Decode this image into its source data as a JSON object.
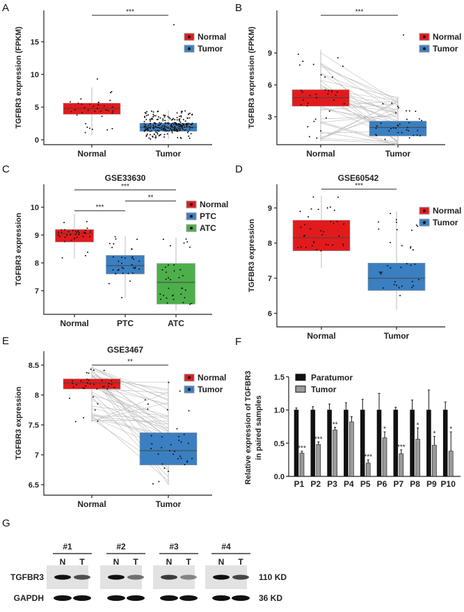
{
  "colors": {
    "normal": "#e31a1c",
    "tumor": "#3a7fc1",
    "atc": "#4daf4a",
    "paratumor": "#111111",
    "tumor_bar": "#9a9a9a"
  },
  "chart_data": [
    {
      "panel": "A",
      "type": "box",
      "title": "",
      "ylabel": "TGFBR3 expression (FPKM)",
      "yticks": [
        0,
        5,
        10,
        15
      ],
      "categories": [
        "Normal",
        "Tumor"
      ],
      "legend": [
        "Normal",
        "Tumor"
      ],
      "boxes": [
        {
          "q1": 3.9,
          "median": 4.8,
          "q3": 5.6,
          "lo": 0.7,
          "hi": 8.0,
          "max": 9.3
        },
        {
          "q1": 1.3,
          "median": 1.9,
          "q3": 2.55,
          "lo": 0.1,
          "hi": 4.5,
          "max": 17.6
        }
      ],
      "comparisons": [
        {
          "groups": [
            0,
            1
          ],
          "label": "***"
        }
      ]
    },
    {
      "panel": "B",
      "type": "box",
      "paired": true,
      "title": "",
      "ylabel": "TGFBR3 expression (FPKM)",
      "yticks": [
        3,
        6,
        9
      ],
      "categories": [
        "Normal",
        "Tumor"
      ],
      "legend": [
        "Normal",
        "Tumor"
      ],
      "boxes": [
        {
          "q1": 4.0,
          "median": 4.8,
          "q3": 5.55,
          "lo": 0.7,
          "hi": 9.3
        },
        {
          "q1": 1.2,
          "median": 2.0,
          "q3": 2.6,
          "lo": 0.3,
          "hi": 4.9,
          "max": 10.7
        }
      ],
      "comparisons": [
        {
          "groups": [
            0,
            1
          ],
          "label": "***"
        }
      ]
    },
    {
      "panel": "C",
      "type": "box",
      "title": "GSE33630",
      "ylabel": "TGFBR3 expression",
      "yticks": [
        7,
        8,
        9,
        10
      ],
      "categories": [
        "Normal",
        "PTC",
        "ATC"
      ],
      "legend": [
        "Normal",
        "PTC",
        "ATC"
      ],
      "boxes": [
        {
          "q1": 8.75,
          "median": 9.05,
          "q3": 9.2,
          "lo": 8.15,
          "hi": 9.75
        },
        {
          "q1": 7.6,
          "median": 7.9,
          "q3": 8.27,
          "lo": 6.75,
          "hi": 8.95
        },
        {
          "q1": 6.52,
          "median": 7.3,
          "q3": 7.98,
          "lo": 6.3,
          "hi": 8.9
        }
      ],
      "comparisons": [
        {
          "groups": [
            0,
            2
          ],
          "label": "***"
        },
        {
          "groups": [
            1,
            2
          ],
          "label": "**"
        },
        {
          "groups": [
            0,
            1
          ],
          "label": "***"
        }
      ]
    },
    {
      "panel": "D",
      "type": "box",
      "title": "GSE60542",
      "ylabel": "TGFBR3 expression",
      "yticks": [
        6,
        7,
        8,
        9
      ],
      "categories": [
        "Normal",
        "Tumor"
      ],
      "legend": [
        "Normal",
        "Tumor"
      ],
      "boxes": [
        {
          "q1": 7.78,
          "median": 8.15,
          "q3": 8.65,
          "lo": 7.3,
          "hi": 9.35
        },
        {
          "q1": 6.65,
          "median": 7.0,
          "q3": 7.43,
          "lo": 6.1,
          "hi": 8.9
        }
      ],
      "comparisons": [
        {
          "groups": [
            0,
            1
          ],
          "label": "***"
        }
      ]
    },
    {
      "panel": "E",
      "type": "box",
      "paired": true,
      "title": "GSE3467",
      "ylabel": "TGFBR3 expression",
      "yticks": [
        6.5,
        7.0,
        7.5,
        8.0,
        8.5
      ],
      "categories": [
        "Normal",
        "Tumor"
      ],
      "legend": [
        "Normal",
        "Tumor"
      ],
      "boxes": [
        {
          "q1": 8.1,
          "median": 8.2,
          "q3": 8.27,
          "lo": 7.55,
          "hi": 8.47
        },
        {
          "q1": 6.83,
          "median": 7.07,
          "q3": 7.37,
          "lo": 6.5,
          "hi": 8.25
        }
      ],
      "comparisons": [
        {
          "groups": [
            0,
            1
          ],
          "label": "**"
        }
      ]
    },
    {
      "panel": "F",
      "type": "bar",
      "title": "",
      "ylabel": [
        "Relative expression of TGFBR3",
        "in paired samples"
      ],
      "yticks": [
        "0.0",
        "0.5",
        "1.0",
        "1.5"
      ],
      "ylim": [
        0,
        1.5
      ],
      "categories": [
        "P1",
        "P2",
        "P3",
        "P4",
        "P5",
        "P6",
        "P7",
        "P8",
        "P9",
        "P10"
      ],
      "series": [
        {
          "name": "Paratumor",
          "values": [
            1,
            1,
            1,
            1,
            1,
            1,
            1,
            1,
            1,
            1
          ],
          "err": [
            0.03,
            0.05,
            0.09,
            0.11,
            0.16,
            0.25,
            0.04,
            0.15,
            0.3,
            0.12
          ]
        },
        {
          "name": "Tumor",
          "values": [
            0.35,
            0.48,
            0.7,
            0.82,
            0.2,
            0.58,
            0.34,
            0.56,
            0.47,
            0.38
          ],
          "err": [
            0.03,
            0.04,
            0.04,
            0.08,
            0.05,
            0.09,
            0.06,
            0.17,
            0.13,
            0.29
          ]
        }
      ],
      "significance": [
        "***",
        "***",
        "**",
        "",
        "***",
        "*",
        "***",
        "*",
        "*",
        "*"
      ]
    }
  ],
  "western": {
    "panel": "G",
    "samples": [
      "#1",
      "#2",
      "#3",
      "#4"
    ],
    "lanes": [
      "N",
      "T"
    ],
    "rows": [
      {
        "label": "TGFBR3",
        "size": "110 KD"
      },
      {
        "label": "GAPDH",
        "size": "36 KD"
      }
    ]
  }
}
